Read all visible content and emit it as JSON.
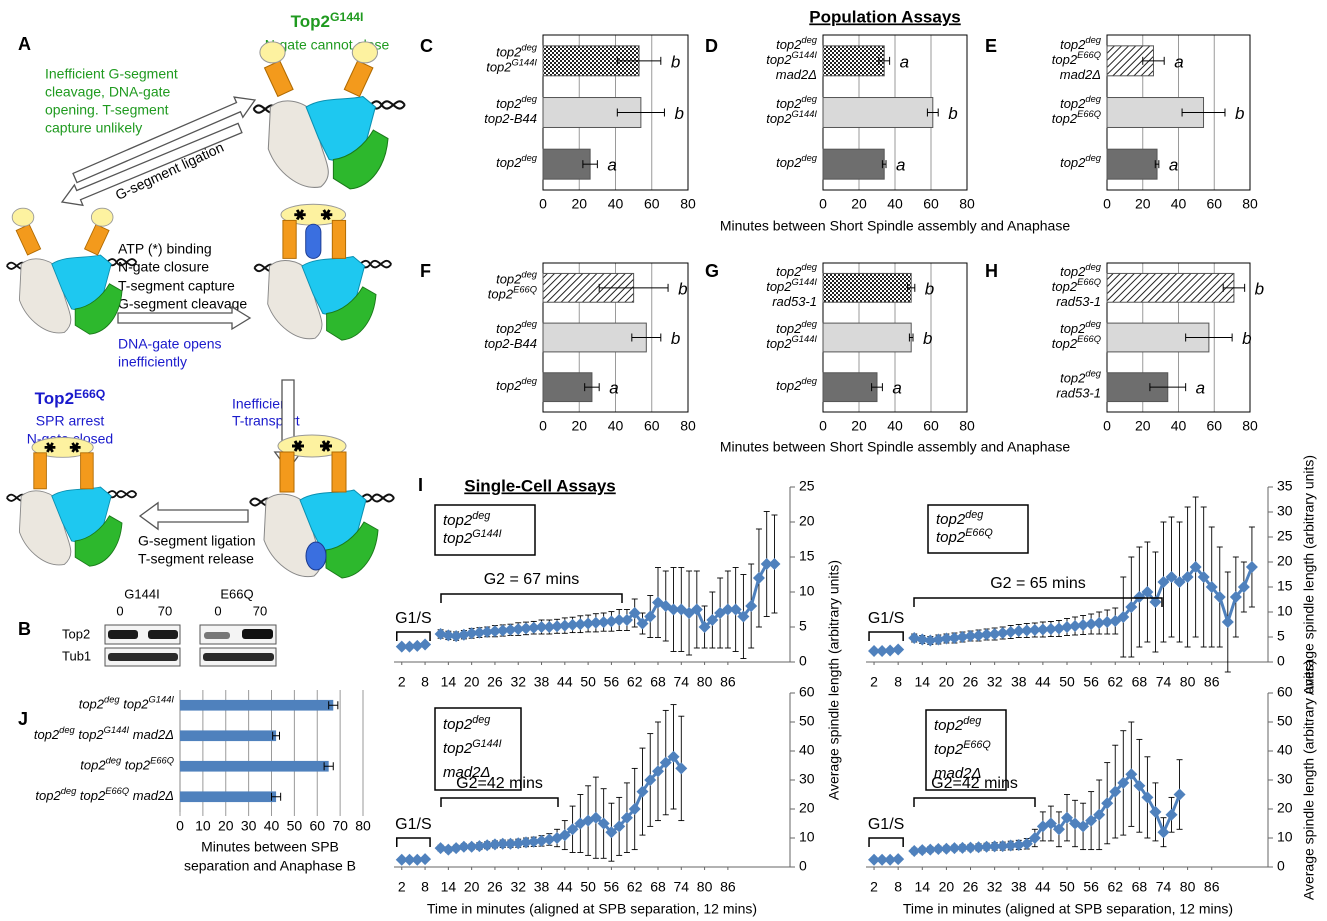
{
  "panel_a": {
    "label": "A",
    "g144i_title": [
      [
        "Top2",
        "G144I"
      ]
    ],
    "g144i_note": "N-gate cannot close",
    "g144i_effect": [
      "Inefficient G-segment",
      "cleavage, DNA-gate",
      "opening. T-segment",
      "capture unlikely"
    ],
    "ligation_arrow": "G-segment ligation",
    "steps": [
      "ATP (*) binding",
      "N-gate closure",
      "T-segment capture",
      "G-segment cleavage"
    ],
    "dna_gate": [
      "DNA-gate opens",
      "inefficiently"
    ],
    "e66q_title": [
      [
        "Top2",
        "E66Q"
      ]
    ],
    "e66q_note": [
      "SPR arrest",
      "N-gate closed"
    ],
    "transport": [
      "Inefficient",
      "T-transport"
    ],
    "release": [
      "G-segment ligation",
      "T-segment release"
    ]
  },
  "panel_b": {
    "label": "B",
    "columns": [
      "G144I",
      "E66Q"
    ],
    "times": [
      0,
      70,
      0,
      70
    ],
    "rows": [
      "Top2",
      "Tub1"
    ]
  },
  "population_title": "Population Assays",
  "panel_i": {
    "label": "I",
    "title": "Single-Cell Assays"
  },
  "chart_data": [
    {
      "type": "hbar",
      "label": "C",
      "categories": [
        [
          [
            "top2",
            "deg"
          ],
          [
            "top2",
            "G144I"
          ]
        ],
        [
          [
            "top2",
            "deg"
          ],
          [
            "top2-B44"
          ]
        ],
        [
          [
            "top2",
            "deg"
          ]
        ]
      ],
      "values": [
        53,
        54,
        26
      ],
      "errors": [
        12,
        13,
        4
      ],
      "annotations": [
        "b",
        "b",
        "a"
      ],
      "colors": [
        "#ffffff",
        "#d9d9d9",
        "#6e6e6e"
      ],
      "top_pattern": "checker",
      "xlim": [
        0,
        80
      ],
      "xticks": [
        0,
        20,
        40,
        60,
        80
      ],
      "grid": true
    },
    {
      "type": "hbar",
      "label": "D",
      "categories": [
        [
          [
            "top2",
            "deg"
          ],
          [
            "top2",
            "G144I"
          ],
          [
            "mad2Δ"
          ]
        ],
        [
          [
            "top2",
            "deg"
          ],
          [
            "top2",
            "G144I"
          ]
        ],
        [
          [
            "top2",
            "deg"
          ]
        ]
      ],
      "values": [
        34,
        61,
        34
      ],
      "errors": [
        3,
        3,
        1
      ],
      "annotations": [
        "a",
        "b",
        "a"
      ],
      "colors": [
        "#ffffff",
        "#d9d9d9",
        "#6e6e6e"
      ],
      "top_pattern": "checker",
      "xlim": [
        0,
        80
      ],
      "xticks": [
        0,
        20,
        40,
        60,
        80
      ],
      "grid": true,
      "xlabel": "Minutes between Short Spindle assembly and Anaphase"
    },
    {
      "type": "hbar",
      "label": "E",
      "categories": [
        [
          [
            "top2",
            "deg"
          ],
          [
            "top2",
            "E66Q"
          ],
          [
            "mad2Δ"
          ]
        ],
        [
          [
            "top2",
            "deg"
          ],
          [
            "top2",
            "E66Q"
          ]
        ],
        [
          [
            "top2",
            "deg"
          ]
        ]
      ],
      "values": [
        26,
        54,
        28
      ],
      "errors": [
        6,
        12,
        1
      ],
      "annotations": [
        "a",
        "b",
        "a"
      ],
      "colors": [
        "#ffffff",
        "#d9d9d9",
        "#6e6e6e"
      ],
      "top_pattern": "hatch",
      "xlim": [
        0,
        80
      ],
      "xticks": [
        0,
        20,
        40,
        60,
        80
      ],
      "grid": true
    },
    {
      "type": "hbar",
      "label": "F",
      "categories": [
        [
          [
            "top2",
            "deg"
          ],
          [
            "top2",
            "E66Q"
          ]
        ],
        [
          [
            "top2",
            "deg"
          ],
          [
            "top2-B44"
          ]
        ],
        [
          [
            "top2",
            "deg"
          ]
        ]
      ],
      "values": [
        50,
        57,
        27
      ],
      "errors": [
        19,
        8,
        4
      ],
      "annotations": [
        "b",
        "b",
        "a"
      ],
      "colors": [
        "#ffffff",
        "#d9d9d9",
        "#6e6e6e"
      ],
      "top_pattern": "hatch",
      "xlim": [
        0,
        80
      ],
      "xticks": [
        0,
        20,
        40,
        60,
        80
      ],
      "grid": true
    },
    {
      "type": "hbar",
      "label": "G",
      "categories": [
        [
          [
            "top2",
            "deg"
          ],
          [
            "top2",
            "G144I"
          ],
          [
            "rad53-1"
          ]
        ],
        [
          [
            "top2",
            "deg"
          ],
          [
            "top2",
            "G144I"
          ]
        ],
        [
          [
            "top2",
            "deg"
          ]
        ]
      ],
      "values": [
        49,
        49,
        30
      ],
      "errors": [
        2,
        1,
        3
      ],
      "annotations": [
        "b",
        "b",
        "a"
      ],
      "colors": [
        "#ffffff",
        "#d9d9d9",
        "#6e6e6e"
      ],
      "top_pattern": "checker",
      "xlim": [
        0,
        80
      ],
      "xticks": [
        0,
        20,
        40,
        60,
        80
      ],
      "grid": true,
      "xlabel": "Minutes between Short Spindle assembly and Anaphase"
    },
    {
      "type": "hbar",
      "label": "H",
      "categories": [
        [
          [
            "top2",
            "deg"
          ],
          [
            "top2",
            "E66Q"
          ],
          [
            "rad53-1"
          ]
        ],
        [
          [
            "top2",
            "deg"
          ],
          [
            "top2",
            "E66Q"
          ]
        ],
        [
          [
            "top2",
            "deg"
          ],
          [
            "rad53-1"
          ]
        ]
      ],
      "values": [
        71,
        57,
        34
      ],
      "errors": [
        6,
        13,
        10
      ],
      "annotations": [
        "b",
        "b",
        "a"
      ],
      "colors": [
        "#ffffff",
        "#d9d9d9",
        "#6e6e6e"
      ],
      "top_pattern": "hatch",
      "xlim": [
        0,
        80
      ],
      "xticks": [
        0,
        20,
        40,
        60,
        80
      ],
      "grid": true
    },
    {
      "type": "hbar",
      "label": "J",
      "categories": [
        [
          [
            "top2",
            "deg",
            " top2",
            "G144I"
          ]
        ],
        [
          [
            "top2",
            "deg",
            " top2",
            "G144I",
            " mad2Δ"
          ]
        ],
        [
          [
            "top2",
            "deg",
            " top2",
            "E66Q"
          ]
        ],
        [
          [
            "top2",
            "deg",
            " top2",
            "E66Q",
            " mad2Δ"
          ]
        ]
      ],
      "values": [
        67,
        42,
        65,
        42
      ],
      "errors": [
        2,
        1.5,
        2,
        2
      ],
      "color": "#4f81bd",
      "xlim": [
        0,
        80
      ],
      "xticks": [
        0,
        10,
        20,
        30,
        40,
        50,
        60,
        70,
        80
      ],
      "grid": true,
      "xlabel": [
        "Minutes between SPB",
        "separation and Anaphase B"
      ]
    },
    {
      "type": "line",
      "label_lines": [
        [
          "top2",
          "deg"
        ],
        [
          "top2",
          "G144I"
        ]
      ],
      "annotations": [
        "G1/S",
        "G2 = 67 mins"
      ],
      "color": "#4f81bd",
      "x": [
        2,
        4,
        6,
        8,
        10,
        12,
        14,
        16,
        18,
        20,
        22,
        24,
        26,
        28,
        30,
        32,
        34,
        36,
        38,
        40,
        42,
        44,
        46,
        48,
        50,
        52,
        54,
        56,
        58,
        60,
        62,
        64,
        66,
        68,
        70,
        72,
        74,
        76,
        78,
        80,
        82,
        84,
        86,
        88,
        90,
        92,
        94,
        96,
        98
      ],
      "values": [
        2.2,
        2.2,
        2.3,
        2.5,
        null,
        4.0,
        3.8,
        3.7,
        3.9,
        4.1,
        4.2,
        4.3,
        4.4,
        4.5,
        4.6,
        4.7,
        4.8,
        4.9,
        5.0,
        5.0,
        5.1,
        5.2,
        5.3,
        5.4,
        5.5,
        5.6,
        5.7,
        5.8,
        6.0,
        6.0,
        7.0,
        5.5,
        6.5,
        8.5,
        8.0,
        7.5,
        7.5,
        7.0,
        7.5,
        5.0,
        6.0,
        7.0,
        7.5,
        7.5,
        6.5,
        8.0,
        12.0,
        14.0,
        14.0
      ],
      "errors": [
        0.3,
        0.3,
        0.3,
        0.3,
        null,
        0.6,
        0.6,
        0.6,
        0.6,
        0.7,
        0.7,
        0.7,
        0.8,
        0.8,
        0.8,
        0.9,
        0.9,
        0.9,
        1.0,
        1.0,
        1.0,
        1.1,
        1.1,
        1.2,
        1.2,
        1.3,
        1.3,
        1.4,
        1.5,
        1.5,
        2.0,
        1.5,
        3.0,
        5.0,
        5.0,
        6.0,
        6.0,
        6.0,
        5.5,
        3.0,
        4.0,
        5.0,
        5.5,
        6.0,
        6.0,
        6.0,
        7.0,
        7.5,
        7.0
      ],
      "xlim": [
        0,
        102
      ],
      "xticks": [
        2,
        8,
        14,
        20,
        26,
        32,
        38,
        44,
        50,
        56,
        62,
        68,
        74,
        80,
        86
      ],
      "ylim": [
        0,
        25
      ],
      "yticks": [
        0,
        5,
        10,
        15,
        20,
        25
      ]
    },
    {
      "type": "line",
      "label_lines": [
        [
          "top2",
          "deg"
        ],
        [
          "top2",
          "E66Q"
        ]
      ],
      "annotations": [
        "G1/S",
        "G2 = 65 mins"
      ],
      "color": "#4f81bd",
      "x": [
        2,
        4,
        6,
        8,
        10,
        12,
        14,
        16,
        18,
        20,
        22,
        24,
        26,
        28,
        30,
        32,
        34,
        36,
        38,
        40,
        42,
        44,
        46,
        48,
        50,
        52,
        54,
        56,
        58,
        60,
        62,
        64,
        66,
        68,
        70,
        72,
        74,
        76,
        78,
        80,
        82,
        84,
        86,
        88,
        90,
        92,
        94,
        96
      ],
      "values": [
        2.2,
        2.2,
        2.3,
        2.5,
        null,
        4.8,
        4.5,
        4.3,
        4.5,
        4.7,
        4.8,
        5.0,
        5.2,
        5.3,
        5.5,
        5.6,
        5.8,
        6.0,
        6.2,
        6.3,
        6.4,
        6.5,
        6.6,
        6.7,
        7.0,
        7.2,
        7.4,
        7.6,
        7.8,
        8.0,
        8.2,
        9,
        11,
        13,
        14,
        12,
        16,
        17,
        16,
        17,
        19,
        17,
        15,
        13,
        8,
        13,
        15,
        19
      ],
      "errors": [
        0.3,
        0.3,
        0.3,
        0.3,
        null,
        0.8,
        0.8,
        0.8,
        0.9,
        0.9,
        1,
        1,
        1,
        1.1,
        1.1,
        1.2,
        1.2,
        1.3,
        1.3,
        1.4,
        1.4,
        1.5,
        1.5,
        1.6,
        1.7,
        1.8,
        1.9,
        2,
        2.2,
        2.4,
        2.6,
        8,
        10,
        10,
        10,
        10,
        12,
        12,
        12,
        14,
        14,
        14,
        12,
        10,
        10,
        8,
        5,
        8
      ],
      "xlim": [
        0,
        100
      ],
      "xticks": [
        2,
        8,
        14,
        20,
        26,
        32,
        38,
        44,
        50,
        56,
        62,
        68,
        74,
        80,
        86
      ],
      "ylim": [
        0,
        35
      ],
      "yticks": [
        0,
        5,
        10,
        15,
        20,
        25,
        30,
        35
      ],
      "ylabel": "Average spindle length (arbitrary units)"
    },
    {
      "type": "line",
      "label_lines": [
        [
          "top2",
          "deg"
        ],
        [
          "top2",
          "G144I"
        ],
        [
          "mad2Δ"
        ]
      ],
      "annotations": [
        "G1/S",
        "G2=42 mins"
      ],
      "color": "#4f81bd",
      "x": [
        2,
        4,
        6,
        8,
        10,
        12,
        14,
        16,
        18,
        20,
        22,
        24,
        26,
        28,
        30,
        32,
        34,
        36,
        38,
        40,
        42,
        44,
        46,
        48,
        50,
        52,
        54,
        56,
        58,
        60,
        62,
        64,
        66,
        68,
        70,
        72,
        74
      ],
      "values": [
        2.5,
        2.5,
        2.5,
        2.7,
        null,
        6.5,
        6.0,
        6.5,
        7.0,
        7.0,
        7.2,
        7.5,
        7.8,
        8.0,
        8.0,
        8.2,
        8.5,
        8.7,
        9.0,
        9.5,
        10,
        11,
        13,
        15,
        16,
        17,
        15,
        12,
        14,
        17,
        20,
        26,
        30,
        33,
        36,
        38,
        34
      ],
      "errors": [
        0.4,
        0.4,
        0.4,
        0.4,
        null,
        1,
        1,
        1,
        1,
        1,
        1.2,
        1.2,
        1.2,
        1.3,
        1.3,
        1.4,
        1.5,
        1.6,
        1.8,
        2,
        3,
        5,
        8,
        10,
        12,
        14,
        12,
        10,
        10,
        12,
        14,
        15,
        16,
        17,
        18,
        18,
        18
      ],
      "xlim": [
        0,
        102
      ],
      "xticks": [
        2,
        8,
        14,
        20,
        26,
        32,
        38,
        44,
        50,
        56,
        62,
        68,
        74,
        80,
        86
      ],
      "ylim": [
        0,
        60
      ],
      "yticks": [
        0,
        10,
        20,
        30,
        40,
        50,
        60
      ],
      "ylabel": "Average spindle length (arbitrary units)",
      "xlabel": "Time in minutes (aligned at SPB separation, 12 mins)"
    },
    {
      "type": "line",
      "label_lines": [
        [
          "top2",
          "deg"
        ],
        [
          "top2",
          "E66Q"
        ],
        [
          "mad2Δ"
        ]
      ],
      "annotations": [
        "G1/S",
        "G2=42 mins"
      ],
      "color": "#4f81bd",
      "x": [
        2,
        4,
        6,
        8,
        10,
        12,
        14,
        16,
        18,
        20,
        22,
        24,
        26,
        28,
        30,
        32,
        34,
        36,
        38,
        40,
        42,
        44,
        46,
        48,
        50,
        52,
        54,
        56,
        58,
        60,
        62,
        64,
        66,
        68,
        70,
        72,
        74,
        76,
        78
      ],
      "values": [
        2.5,
        2.5,
        2.5,
        2.7,
        null,
        5.5,
        5.8,
        6.0,
        6.2,
        6.3,
        6.5,
        6.6,
        6.7,
        6.8,
        7.0,
        7.1,
        7.2,
        7.4,
        7.6,
        8.0,
        10,
        14,
        15,
        13,
        17,
        15,
        14,
        16,
        18,
        22,
        26,
        29,
        32,
        28,
        24,
        19,
        12,
        18,
        25
      ],
      "errors": [
        0.4,
        0.4,
        0.4,
        0.4,
        null,
        1,
        1,
        1,
        1,
        1,
        1,
        1.1,
        1.1,
        1.2,
        1.2,
        1.3,
        1.4,
        1.5,
        1.6,
        1.8,
        3,
        5,
        6,
        6,
        8,
        8,
        8,
        10,
        12,
        14,
        16,
        18,
        18,
        16,
        14,
        10,
        5,
        6,
        12
      ],
      "xlim": [
        0,
        100
      ],
      "xticks": [
        2,
        8,
        14,
        20,
        26,
        32,
        38,
        44,
        50,
        56,
        62,
        68,
        74,
        80,
        86
      ],
      "ylim": [
        0,
        60
      ],
      "yticks": [
        0,
        10,
        20,
        30,
        40,
        50,
        60
      ],
      "ylabel": "Average spindle length (arbitrary units)",
      "xlabel": "Time in minutes (aligned at SPB separation, 12 mins)"
    }
  ]
}
